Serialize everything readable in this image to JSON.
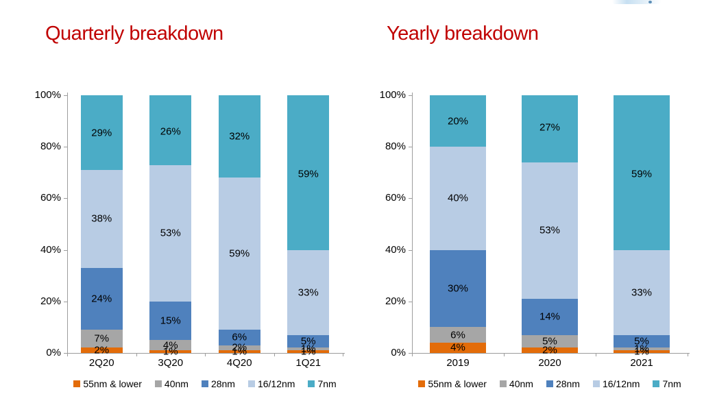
{
  "page": {
    "background": "#ffffff"
  },
  "chart_data": [
    {
      "type": "bar",
      "subtype": "stacked-100-percent",
      "title": "Quarterly breakdown",
      "title_color": "#C00000",
      "categories": [
        "2Q20",
        "3Q20",
        "4Q20",
        "1Q21"
      ],
      "series": [
        {
          "name": "55nm & lower",
          "color": "#E36C09",
          "values": [
            2,
            1,
            1,
            1
          ]
        },
        {
          "name": "40nm",
          "color": "#A6A6A6",
          "values": [
            7,
            4,
            2,
            1
          ]
        },
        {
          "name": "28nm",
          "color": "#4F81BD",
          "values": [
            24,
            15,
            6,
            5
          ]
        },
        {
          "name": "16/12nm",
          "color": "#B8CCE4",
          "values": [
            38,
            53,
            59,
            33
          ]
        },
        {
          "name": "7nm",
          "color": "#4BACC6",
          "values": [
            29,
            26,
            32,
            59
          ]
        }
      ],
      "label_suffix": "%",
      "y_axis": {
        "min": 0,
        "max": 100,
        "ticks": [
          "0%",
          "20%",
          "40%",
          "60%",
          "80%",
          "100%"
        ]
      },
      "grid": false,
      "legend_position": "bottom"
    },
    {
      "type": "bar",
      "subtype": "stacked-100-percent",
      "title": "Yearly breakdown",
      "title_color": "#C00000",
      "categories": [
        "2019",
        "2020",
        "2021"
      ],
      "series": [
        {
          "name": "55nm & lower",
          "color": "#E36C09",
          "values": [
            4,
            2,
            1
          ]
        },
        {
          "name": "40nm",
          "color": "#A6A6A6",
          "values": [
            6,
            5,
            1
          ]
        },
        {
          "name": "28nm",
          "color": "#4F81BD",
          "values": [
            30,
            14,
            5
          ]
        },
        {
          "name": "16/12nm",
          "color": "#B8CCE4",
          "values": [
            40,
            53,
            33
          ]
        },
        {
          "name": "7nm",
          "color": "#4BACC6",
          "values": [
            20,
            27,
            59
          ]
        }
      ],
      "label_suffix": "%",
      "y_axis": {
        "min": 0,
        "max": 100,
        "ticks": [
          "0%",
          "20%",
          "40%",
          "60%",
          "80%",
          "100%"
        ]
      },
      "grid": false,
      "legend_position": "bottom"
    }
  ]
}
